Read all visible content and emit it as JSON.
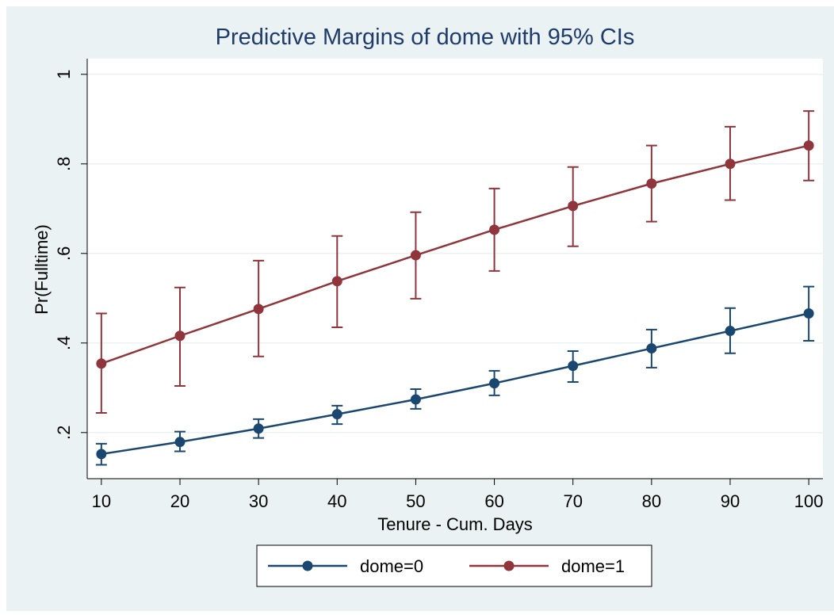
{
  "chart_data": {
    "type": "line",
    "title": "Predictive Margins of dome with 95% CIs",
    "x_label": "Tenure - Cum. Days",
    "y_label": "Pr(Fulltime)",
    "x": [
      10,
      20,
      30,
      40,
      50,
      60,
      70,
      80,
      90,
      100
    ],
    "series": [
      {
        "name": "dome=0",
        "color": "#1a476f",
        "values": [
          0.152,
          0.179,
          0.209,
          0.241,
          0.274,
          0.31,
          0.349,
          0.388,
          0.427,
          0.466
        ],
        "ci_lower": [
          0.128,
          0.158,
          0.188,
          0.219,
          0.253,
          0.283,
          0.313,
          0.345,
          0.377,
          0.405
        ],
        "ci_upper": [
          0.175,
          0.202,
          0.23,
          0.26,
          0.297,
          0.338,
          0.382,
          0.43,
          0.478,
          0.526
        ]
      },
      {
        "name": "dome=1",
        "color": "#90353b",
        "values": [
          0.354,
          0.416,
          0.476,
          0.538,
          0.596,
          0.653,
          0.706,
          0.756,
          0.8,
          0.841
        ],
        "ci_lower": [
          0.244,
          0.304,
          0.37,
          0.435,
          0.499,
          0.561,
          0.616,
          0.671,
          0.719,
          0.763
        ],
        "ci_upper": [
          0.466,
          0.524,
          0.584,
          0.639,
          0.692,
          0.745,
          0.793,
          0.841,
          0.883,
          0.918
        ]
      }
    ],
    "xlim": [
      8.2,
      101.8
    ],
    "ylim": [
      0.097,
      1.035
    ],
    "xticks": [
      10,
      20,
      30,
      40,
      50,
      60,
      70,
      80,
      90,
      100
    ],
    "yticks": [
      {
        "value": 0.2,
        "label": ".2"
      },
      {
        "value": 0.4,
        "label": ".4"
      },
      {
        "value": 0.6,
        "label": ".6"
      },
      {
        "value": 0.8,
        "label": ".8"
      },
      {
        "value": 1,
        "label": "1"
      }
    ],
    "grid": true,
    "legend": "bottom"
  }
}
